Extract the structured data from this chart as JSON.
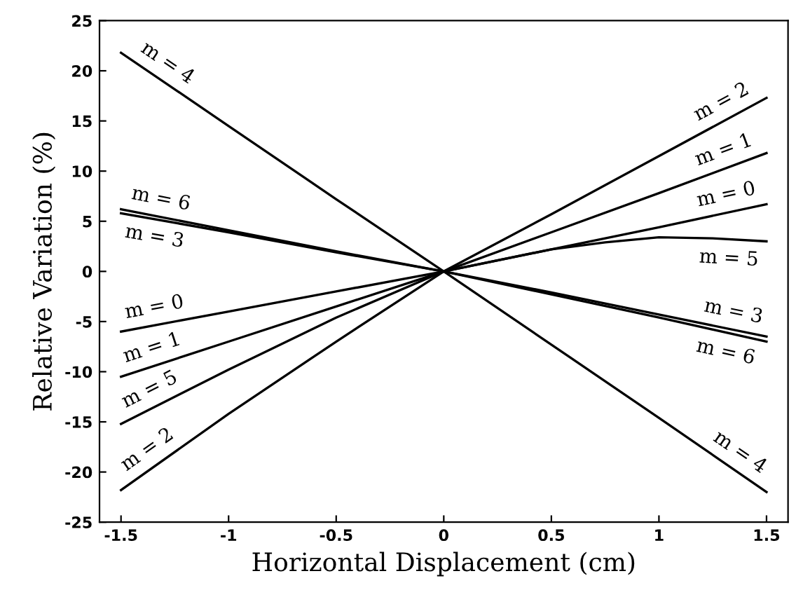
{
  "chart_data": {
    "type": "line",
    "xlabel": "Horizontal Displacement (cm)",
    "ylabel": "Relative Variation (%)",
    "x": [
      -1.5,
      -1,
      -0.5,
      0,
      0.5,
      1,
      1.5
    ],
    "series": [
      {
        "name": "m = 4",
        "color": "#000000",
        "values": [
          21.8,
          14.5,
          7.2,
          0,
          -7.3,
          -14.6,
          -22
        ]
      },
      {
        "name": "m = 2",
        "color": "#000000",
        "values": [
          -21.8,
          -14.2,
          -7,
          0,
          5.7,
          11.5,
          17.3
        ]
      },
      {
        "name": "m = 1",
        "color": "#000000",
        "values": [
          -10.5,
          -7,
          -3.5,
          0,
          3.9,
          7.8,
          11.8
        ]
      },
      {
        "name": "m = 0",
        "color": "#000000",
        "values": [
          -6,
          -4,
          -2,
          0,
          2.2,
          4.4,
          6.7
        ]
      },
      {
        "name": "m = 5",
        "color": "#000000",
        "x": [
          -1.5,
          -1,
          -0.5,
          0,
          0.5,
          0.75,
          1,
          1.25,
          1.5
        ],
        "values": [
          -15.2,
          -9.8,
          -4.6,
          0,
          2.2,
          2.9,
          3.4,
          3.3,
          3.0
        ]
      },
      {
        "name": "m = 3",
        "color": "#000000",
        "values": [
          5.8,
          3.9,
          1.9,
          0,
          -2.1,
          -4.3,
          -6.5
        ]
      },
      {
        "name": "m = 6",
        "color": "#000000",
        "values": [
          6.2,
          4.1,
          2,
          0,
          -2.3,
          -4.6,
          -7
        ]
      }
    ],
    "xlim": [
      -1.6,
      1.6
    ],
    "ylim": [
      -25,
      25
    ],
    "xticks": [
      -1.5,
      -1,
      -0.5,
      0,
      0.5,
      1,
      1.5
    ],
    "yticks": [
      -25,
      -20,
      -15,
      -10,
      -5,
      0,
      5,
      10,
      15,
      20,
      25
    ],
    "legend": false,
    "marker": "none",
    "line_style": "solid"
  }
}
